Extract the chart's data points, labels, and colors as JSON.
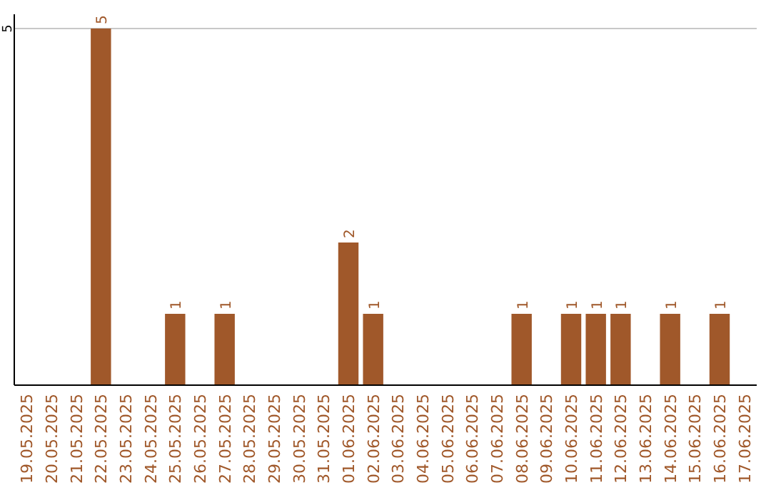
{
  "chart_data": {
    "type": "bar",
    "categories": [
      "19.05.2025",
      "20.05.2025",
      "21.05.2025",
      "22.05.2025",
      "23.05.2025",
      "24.05.2025",
      "25.05.2025",
      "26.05.2025",
      "27.05.2025",
      "28.05.2025",
      "29.05.2025",
      "30.05.2025",
      "31.05.2025",
      "01.06.2025",
      "02.06.2025",
      "03.06.2025",
      "04.06.2025",
      "05.06.2025",
      "06.06.2025",
      "07.06.2025",
      "08.06.2025",
      "09.06.2025",
      "10.06.2025",
      "11.06.2025",
      "12.06.2025",
      "13.06.2025",
      "14.06.2025",
      "15.06.2025",
      "16.06.2025",
      "17.06.2025"
    ],
    "values": [
      0,
      0,
      0,
      5,
      0,
      0,
      1,
      0,
      1,
      0,
      0,
      0,
      0,
      2,
      1,
      0,
      0,
      0,
      0,
      0,
      1,
      0,
      1,
      1,
      1,
      0,
      1,
      0,
      1,
      0
    ],
    "value_labels": [
      null,
      null,
      null,
      "5",
      null,
      null,
      "1",
      null,
      "1",
      null,
      null,
      null,
      null,
      "2",
      "1",
      null,
      null,
      null,
      null,
      null,
      "1",
      null,
      "1",
      "1",
      "1",
      null,
      "1",
      null,
      "1",
      null
    ],
    "color": "#a0582a",
    "ylim": [
      0,
      5.2
    ],
    "yticks": [
      5
    ],
    "grid": "y"
  }
}
